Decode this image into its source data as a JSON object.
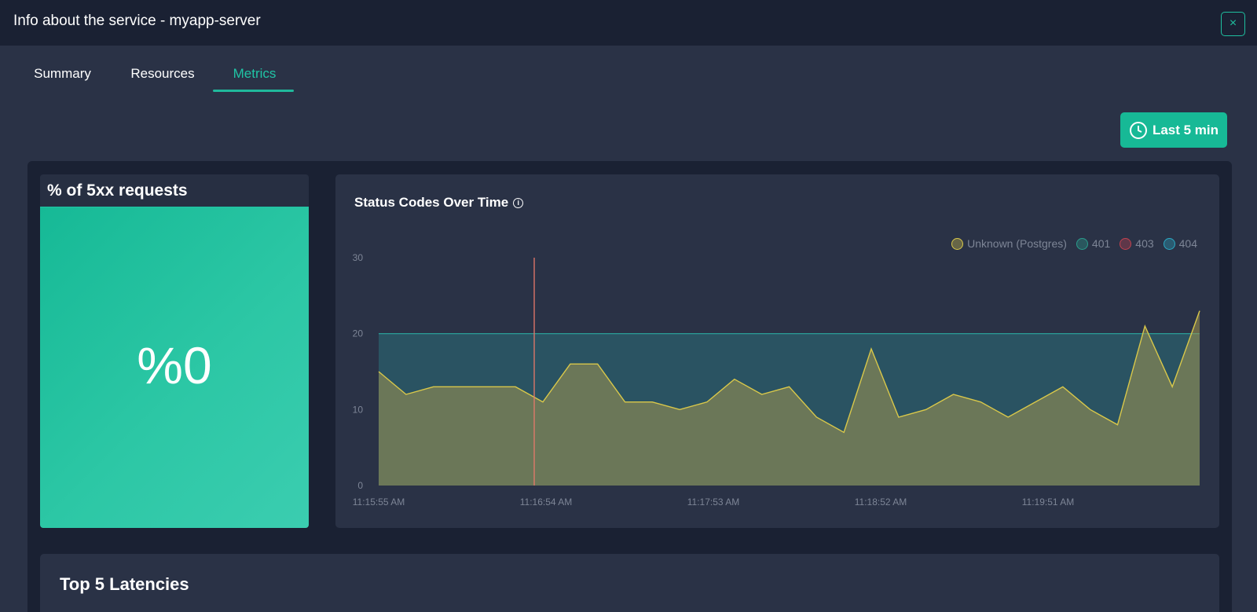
{
  "window": {
    "title": "Info about the service - myapp-server",
    "close_glyph": "×"
  },
  "tabs": [
    {
      "label": "Summary",
      "active": false
    },
    {
      "label": "Resources",
      "active": false
    },
    {
      "label": "Metrics",
      "active": true
    }
  ],
  "time_range": {
    "label": "Last 5 min",
    "icon": "clock-icon"
  },
  "error_card": {
    "title": "% of 5xx requests",
    "value": "%0"
  },
  "colors": {
    "accent": "#20c4a5",
    "unknown": "#d9c84a",
    "s401": "#2a9d8c",
    "s403": "#c2424f",
    "s404": "#2aa9c4",
    "marker": "#e8786a"
  },
  "chart_data": {
    "type": "area",
    "title": "Status Codes Over Time",
    "ylim": [
      0,
      30
    ],
    "y_ticks": [
      "0",
      "10",
      "20",
      "30"
    ],
    "x_tick_labels": [
      "11:15:55 AM",
      "11:16:54 AM",
      "11:17:53 AM",
      "11:18:52 AM",
      "11:19:51 AM"
    ],
    "legend": [
      "Unknown (Postgres)",
      "401",
      "403",
      "404"
    ],
    "series": [
      {
        "name": "Unknown (Postgres)",
        "values": [
          15,
          12,
          13,
          13,
          13,
          13,
          11,
          16,
          16,
          11,
          11,
          10,
          11,
          14,
          12,
          13,
          9,
          7,
          18,
          9,
          10,
          12,
          11,
          9,
          11,
          13,
          10,
          8,
          21,
          13,
          23
        ]
      },
      {
        "name": "401",
        "values": [
          20,
          20,
          20,
          20,
          20,
          20,
          20,
          20,
          20,
          20,
          20,
          20,
          20,
          20,
          20,
          20,
          20,
          20,
          20,
          20,
          20,
          20,
          20,
          20,
          20,
          20,
          20,
          20,
          20,
          20,
          20
        ]
      }
    ],
    "marker_line": {
      "series": "403",
      "value": 30
    }
  },
  "latency_card": {
    "title": "Top 5 Latencies"
  }
}
